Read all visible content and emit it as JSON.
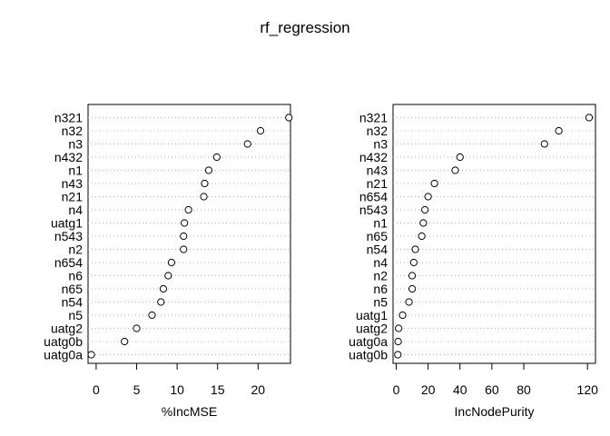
{
  "chart_data": {
    "title": "rf_regression",
    "panels": [
      {
        "type": "scatter",
        "xlabel": "%IncMSE",
        "xlim": [
          -1,
          24
        ],
        "xticks": [
          0,
          5,
          10,
          15,
          20
        ],
        "grid": "dotted-rows",
        "categories": [
          "n321",
          "n32",
          "n3",
          "n432",
          "n1",
          "n43",
          "n21",
          "n4",
          "uatg1",
          "n543",
          "n2",
          "n654",
          "n6",
          "n65",
          "n54",
          "n5",
          "uatg2",
          "uatg0b",
          "uatg0a"
        ],
        "values": [
          23.8,
          20.3,
          18.7,
          14.9,
          13.9,
          13.4,
          13.3,
          11.4,
          10.9,
          10.8,
          10.8,
          9.3,
          8.9,
          8.3,
          8.0,
          6.9,
          5.0,
          3.5,
          -0.6
        ]
      },
      {
        "type": "scatter",
        "xlabel": "IncNodePurity",
        "xlim": [
          -2,
          125
        ],
        "xticks": [
          0,
          20,
          40,
          60,
          80,
          120
        ],
        "grid": "dotted-rows",
        "categories": [
          "n321",
          "n32",
          "n3",
          "n432",
          "n43",
          "n21",
          "n654",
          "n543",
          "n1",
          "n65",
          "n54",
          "n4",
          "n2",
          "n6",
          "n5",
          "uatg1",
          "uatg2",
          "uatg0a",
          "uatg0b"
        ],
        "values": [
          121,
          102,
          93,
          40,
          37,
          24,
          20,
          18,
          17,
          16,
          12,
          11,
          10,
          10,
          8,
          4,
          1.5,
          1.2,
          1.0
        ]
      }
    ]
  }
}
